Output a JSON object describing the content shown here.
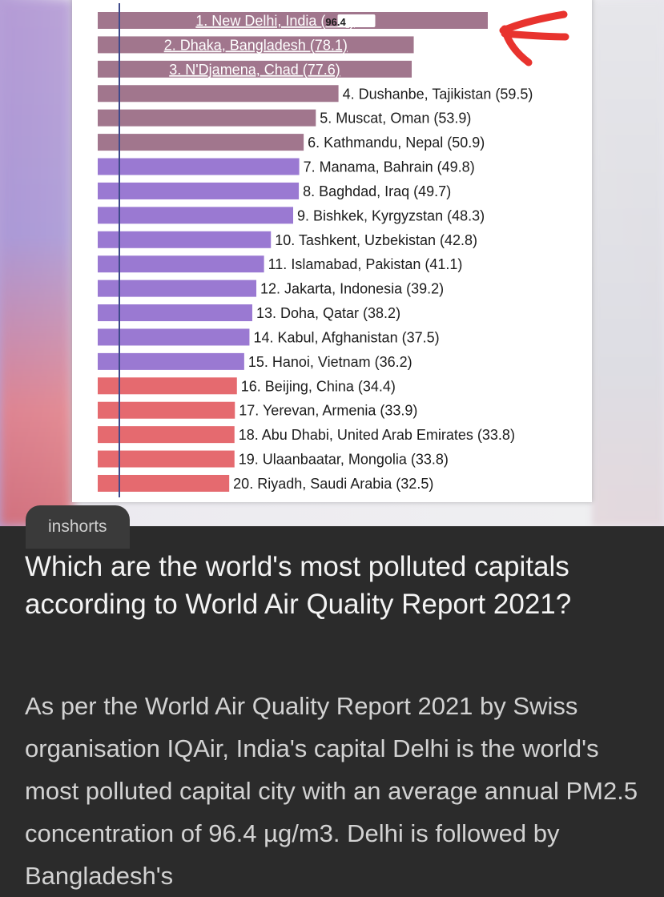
{
  "card": {
    "source": "inshorts",
    "headline": "Which are the world's most polluted capitals according to World Air Quality Report 2021?",
    "body": "As per the World Air Quality Report 2021 by Swiss organisation IQAir, India's capital Delhi is the world's most polluted capital city with an average annual PM2.5 concentration of 96.4 µg/m3. Delhi is followed by Bangladesh's"
  },
  "colors": {
    "mauve": "#a1768d",
    "purple": "#9a79d2",
    "red": "#e56a6f",
    "annotation": "#e8332e"
  },
  "chart_data": {
    "type": "bar",
    "orientation": "horizontal",
    "categories": [
      "New Delhi, India",
      "Dhaka, Bangladesh",
      "N'Djamena, Chad",
      "Dushanbe, Tajikistan",
      "Muscat, Oman",
      "Kathmandu, Nepal",
      "Manama, Bahrain",
      "Baghdad, Iraq",
      "Bishkek, Kyrgyzstan",
      "Tashkent, Uzbekistan",
      "Islamabad, Pakistan",
      "Jakarta, Indonesia",
      "Doha, Qatar",
      "Kabul, Afghanistan",
      "Hanoi, Vietnam",
      "Beijing, China",
      "Yerevan, Armenia",
      "Abu Dhabi, United Arab Emirates",
      "Ulaanbaatar, Mongolia",
      "Riyadh, Saudi Arabia"
    ],
    "labels": [
      "1. New Delhi, India (",
      "2. Dhaka, Bangladesh (78.1)",
      "3. N'Djamena, Chad  (77.6)",
      "4. Dushanbe, Tajikistan (59.5)",
      "5. Muscat, Oman (53.9)",
      "6. Kathmandu, Nepal (50.9)",
      "7. Manama, Bahrain (49.8)",
      "8. Baghdad, Iraq (49.7)",
      "9. Bishkek, Kyrgyzstan (48.3)",
      "10. Tashkent, Uzbekistan (42.8)",
      "11. Islamabad, Pakistan (41.1)",
      "12. Jakarta, Indonesia (39.2)",
      "13. Doha, Qatar (38.2)",
      "14. Kabul, Afghanistan (37.5)",
      "15. Hanoi, Vietnam (36.2)",
      "16. Beijing, China (34.4)",
      "17. Yerevan, Armenia (33.9)",
      "18. Abu Dhabi, United Arab Emirates (33.8)",
      "19. Ulaanbaatar, Mongolia (33.8)",
      "20. Riyadh, Saudi Arabia (32.5)"
    ],
    "first_value_text": "96.4",
    "first_label_close": ")",
    "values": [
      96.4,
      78.1,
      77.6,
      59.5,
      53.9,
      50.9,
      49.8,
      49.7,
      48.3,
      42.8,
      41.1,
      39.2,
      38.2,
      37.5,
      36.2,
      34.4,
      33.9,
      33.8,
      33.8,
      32.5
    ],
    "color_groups": [
      "mauve",
      "mauve",
      "mauve",
      "mauve",
      "mauve",
      "mauve",
      "purple",
      "purple",
      "purple",
      "purple",
      "purple",
      "purple",
      "purple",
      "purple",
      "purple",
      "red",
      "red",
      "red",
      "red",
      "red"
    ],
    "labels_inside_bar_count": 3,
    "highlighted_index": 0,
    "xlim": [
      0,
      96.4
    ],
    "grid": false
  }
}
